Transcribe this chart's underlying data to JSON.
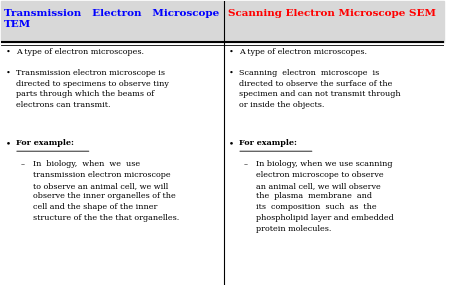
{
  "title_left": "Transmission   Electron   Microscope\nTEM",
  "title_right": "Scanning Electron Microscope SEM",
  "title_left_color": "blue",
  "title_right_color": "red",
  "background_color": "white",
  "header_bg": "#d8d8d8",
  "divider_color": "black",
  "font_size": 5.8,
  "header_font_size": 7.5,
  "left_content": [
    {
      "type": "bullet",
      "text": "A type of electron microscopes.",
      "lines": 1
    },
    {
      "type": "bullet",
      "text": "Transmission electron microscope is\ndirected to specimens to observe tiny\nparts through which the beams of\nelectrons can transmit.",
      "lines": 4
    },
    {
      "type": "bullet_bold",
      "text": "For example:",
      "lines": 1
    },
    {
      "type": "subbullet",
      "text": "In  biology,  when  we  use\ntransmission electron microscope\nto observe an animal cell, we will\nobserve the inner organelles of the\ncell and the shape of the inner\nstructure of the the that organelles.",
      "lines": 6
    }
  ],
  "right_content": [
    {
      "type": "bullet",
      "text": "A type of electron microscopes.",
      "lines": 1
    },
    {
      "type": "bullet",
      "text": "Scanning  electron  microscope  is\ndirected to observe the surface of the\nspecimen and can not transmit through\nor inside the objects.",
      "lines": 4
    },
    {
      "type": "bullet_bold",
      "text": "For example:",
      "lines": 1
    },
    {
      "type": "subbullet",
      "text": "In biology, when we use scanning\nelectron microscope to observe\nan animal cell, we will observe\nthe  plasma  membrane  and\nits  composition  such  as  the\nphospholipid layer and embedded\nprotein molecules.",
      "lines": 7
    }
  ]
}
